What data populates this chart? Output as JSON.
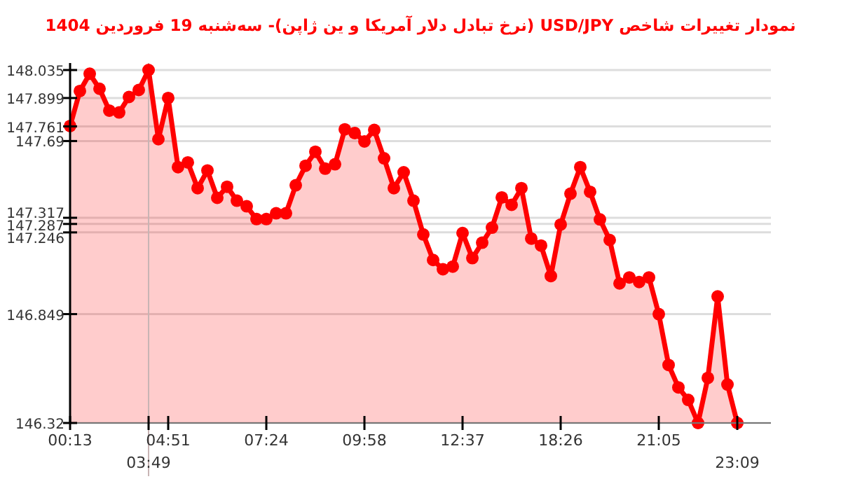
{
  "chart_data": {
    "type": "area",
    "title": "نمودار تغییرات شاخص USD/JPY (نرخ تبادل دلار آمریکا و ین ژاپن)- سه‌شنبه  19 فروردین 1404",
    "categories": [
      "00:13",
      null,
      null,
      null,
      null,
      null,
      null,
      null,
      "03:49",
      null,
      "04:51",
      null,
      null,
      null,
      null,
      null,
      null,
      null,
      null,
      null,
      "07:24",
      null,
      null,
      null,
      null,
      null,
      null,
      null,
      null,
      null,
      "09:58",
      null,
      null,
      null,
      null,
      null,
      null,
      null,
      null,
      null,
      "12:37",
      null,
      null,
      null,
      null,
      null,
      null,
      null,
      null,
      null,
      "18:26",
      null,
      null,
      null,
      null,
      null,
      null,
      null,
      null,
      null,
      "21:05",
      null,
      null,
      null,
      null,
      null,
      null,
      null,
      "23:09"
    ],
    "series": [
      {
        "color": "#ff0000",
        "values": [
          147.763,
          147.933,
          148.017,
          147.944,
          147.838,
          147.829,
          147.904,
          147.938,
          148.035,
          147.699,
          147.899,
          147.563,
          147.586,
          147.461,
          147.547,
          147.414,
          147.468,
          147.4,
          147.373,
          147.311,
          147.311,
          147.339,
          147.339,
          147.475,
          147.57,
          147.638,
          147.556,
          147.577,
          147.747,
          147.729,
          147.688,
          147.744,
          147.606,
          147.461,
          147.538,
          147.4,
          147.236,
          147.112,
          147.067,
          147.08,
          147.243,
          147.121,
          147.196,
          147.269,
          147.416,
          147.38,
          147.461,
          147.216,
          147.182,
          147.034,
          147.284,
          147.434,
          147.563,
          147.443,
          147.309,
          147.209,
          146.998,
          147.027,
          147.005,
          147.027,
          146.849,
          146.602,
          146.493,
          146.432,
          146.32,
          146.539,
          146.935,
          146.507,
          146.32
        ]
      }
    ],
    "ylim": [
      146.32,
      148.035
    ],
    "yticks": [
      148.035,
      147.899,
      147.761,
      147.69,
      147.317,
      147.287,
      147.246,
      146.849,
      146.32
    ],
    "ref_lines": [
      {
        "axis": "x",
        "value": "03:49",
        "color": "#c8b4b4"
      }
    ],
    "grid": "y",
    "marker": "circle"
  }
}
